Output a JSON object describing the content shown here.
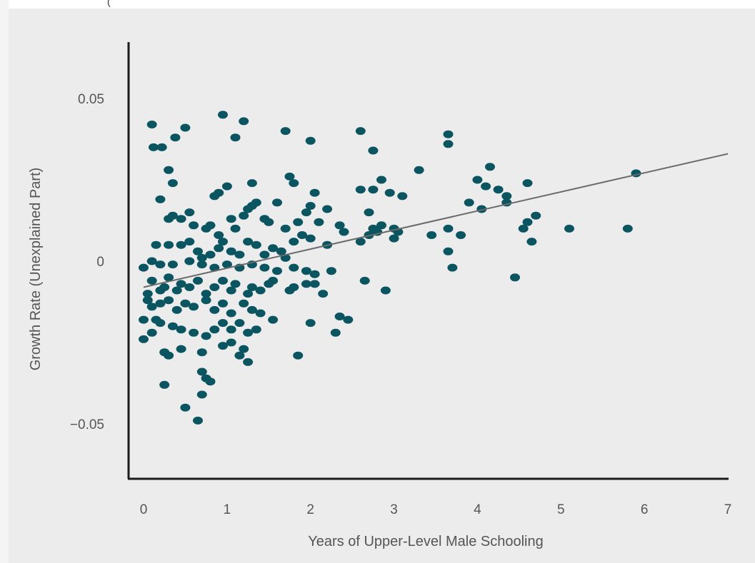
{
  "page": {
    "top_fragment": "("
  },
  "colors": {
    "background": "#ececed",
    "point": "#0b5561",
    "trendline": "#6a6a6a",
    "axis": "#1b1b1b",
    "text": "#555555"
  },
  "chart_data": {
    "type": "scatter",
    "title": "",
    "xlabel": "Years of Upper-Level Male Schooling",
    "ylabel": "Growth Rate (Unexplained Part)",
    "xlim": [
      0,
      7
    ],
    "ylim": [
      -0.068,
      0.07
    ],
    "x_ticks": [
      {
        "value": 0,
        "label": "0"
      },
      {
        "value": 1,
        "label": "1"
      },
      {
        "value": 2,
        "label": "2"
      },
      {
        "value": 3,
        "label": "3"
      },
      {
        "value": 4,
        "label": "4"
      },
      {
        "value": 5,
        "label": "5"
      },
      {
        "value": 6,
        "label": "6"
      },
      {
        "value": 7,
        "label": "7"
      }
    ],
    "y_ticks": [
      {
        "value": 0.05,
        "label": "0.05"
      },
      {
        "value": 0,
        "label": "0"
      },
      {
        "value": -0.05,
        "label": "−0.05"
      }
    ],
    "grid": false,
    "legend": "none",
    "trendline": {
      "x": [
        0,
        7
      ],
      "y": [
        -0.008,
        0.033
      ]
    },
    "points": [
      [
        0.1,
        0.042
      ],
      [
        0.12,
        0.035
      ],
      [
        0.22,
        0.035
      ],
      [
        0.38,
        0.038
      ],
      [
        0.5,
        0.041
      ],
      [
        0.95,
        0.045
      ],
      [
        1.1,
        0.038
      ],
      [
        1.2,
        0.043
      ],
      [
        1.7,
        0.04
      ],
      [
        2.0,
        0.037
      ],
      [
        2.6,
        0.04
      ],
      [
        2.75,
        0.034
      ],
      [
        3.65,
        0.039
      ],
      [
        3.65,
        0.036
      ],
      [
        0.3,
        0.028
      ],
      [
        0.35,
        0.024
      ],
      [
        0.2,
        0.019
      ],
      [
        0.9,
        0.021
      ],
      [
        0.85,
        0.02
      ],
      [
        1.0,
        0.023
      ],
      [
        1.3,
        0.024
      ],
      [
        1.75,
        0.026
      ],
      [
        1.8,
        0.024
      ],
      [
        2.05,
        0.021
      ],
      [
        2.6,
        0.022
      ],
      [
        2.75,
        0.022
      ],
      [
        2.85,
        0.025
      ],
      [
        2.95,
        0.021
      ],
      [
        3.1,
        0.02
      ],
      [
        3.3,
        0.028
      ],
      [
        3.9,
        0.018
      ],
      [
        4.0,
        0.025
      ],
      [
        4.15,
        0.029
      ],
      [
        4.1,
        0.023
      ],
      [
        4.25,
        0.022
      ],
      [
        4.35,
        0.02
      ],
      [
        4.35,
        0.018
      ],
      [
        4.6,
        0.024
      ],
      [
        4.05,
        0.016
      ],
      [
        5.9,
        0.027
      ],
      [
        0.3,
        0.013
      ],
      [
        0.35,
        0.014
      ],
      [
        0.45,
        0.013
      ],
      [
        0.55,
        0.015
      ],
      [
        0.6,
        0.011
      ],
      [
        0.75,
        0.01
      ],
      [
        0.8,
        0.011
      ],
      [
        0.9,
        0.008
      ],
      [
        1.05,
        0.013
      ],
      [
        1.1,
        0.01
      ],
      [
        1.2,
        0.014
      ],
      [
        1.25,
        0.016
      ],
      [
        1.3,
        0.017
      ],
      [
        1.35,
        0.018
      ],
      [
        1.45,
        0.013
      ],
      [
        1.5,
        0.012
      ],
      [
        1.6,
        0.018
      ],
      [
        1.7,
        0.01
      ],
      [
        1.85,
        0.012
      ],
      [
        1.95,
        0.015
      ],
      [
        2.0,
        0.017
      ],
      [
        2.1,
        0.012
      ],
      [
        2.2,
        0.016
      ],
      [
        2.35,
        0.011
      ],
      [
        2.4,
        0.009
      ],
      [
        2.7,
        0.015
      ],
      [
        2.75,
        0.01
      ],
      [
        2.8,
        0.009
      ],
      [
        2.85,
        0.011
      ],
      [
        3.0,
        0.01
      ],
      [
        3.45,
        0.008
      ],
      [
        3.65,
        0.01
      ],
      [
        3.8,
        0.008
      ],
      [
        4.6,
        0.012
      ],
      [
        4.7,
        0.014
      ],
      [
        4.55,
        0.01
      ],
      [
        5.1,
        0.01
      ],
      [
        5.8,
        0.01
      ],
      [
        0.15,
        0.005
      ],
      [
        0.3,
        0.005
      ],
      [
        0.45,
        0.005
      ],
      [
        0.55,
        0.006
      ],
      [
        0.65,
        0.003
      ],
      [
        0.7,
        0.001
      ],
      [
        0.8,
        0.002
      ],
      [
        0.9,
        0.004
      ],
      [
        0.95,
        0.006
      ],
      [
        1.05,
        0.003
      ],
      [
        1.15,
        0.002
      ],
      [
        1.25,
        0.006
      ],
      [
        1.35,
        0.005
      ],
      [
        1.45,
        0.002
      ],
      [
        1.55,
        0.004
      ],
      [
        1.65,
        0.003
      ],
      [
        1.7,
        0.001
      ],
      [
        1.8,
        0.006
      ],
      [
        1.9,
        0.008
      ],
      [
        2.0,
        0.007
      ],
      [
        2.2,
        0.005
      ],
      [
        2.6,
        0.006
      ],
      [
        2.7,
        0.008
      ],
      [
        3.0,
        0.007
      ],
      [
        3.05,
        0.009
      ],
      [
        3.65,
        0.003
      ],
      [
        4.65,
        0.006
      ],
      [
        0.1,
        0.0
      ],
      [
        0.2,
        -0.001
      ],
      [
        0.35,
        -0.001
      ],
      [
        0.55,
        0.0
      ],
      [
        0.7,
        -0.001
      ],
      [
        0.85,
        -0.002
      ],
      [
        1.0,
        -0.001
      ],
      [
        1.15,
        -0.002
      ],
      [
        1.3,
        -0.001
      ],
      [
        1.45,
        -0.002
      ],
      [
        1.6,
        -0.003
      ],
      [
        1.8,
        -0.002
      ],
      [
        1.95,
        -0.003
      ],
      [
        2.05,
        -0.004
      ],
      [
        2.25,
        -0.003
      ],
      [
        3.7,
        -0.002
      ],
      [
        0.0,
        -0.002
      ],
      [
        0.05,
        -0.01
      ],
      [
        0.1,
        -0.006
      ],
      [
        0.2,
        -0.009
      ],
      [
        0.25,
        -0.008
      ],
      [
        0.3,
        -0.005
      ],
      [
        0.4,
        -0.009
      ],
      [
        0.45,
        -0.007
      ],
      [
        0.55,
        -0.008
      ],
      [
        0.65,
        -0.006
      ],
      [
        0.75,
        -0.01
      ],
      [
        0.85,
        -0.008
      ],
      [
        0.95,
        -0.006
      ],
      [
        1.05,
        -0.009
      ],
      [
        1.1,
        -0.007
      ],
      [
        1.25,
        -0.01
      ],
      [
        1.3,
        -0.008
      ],
      [
        1.4,
        -0.009
      ],
      [
        1.5,
        -0.007
      ],
      [
        1.55,
        -0.006
      ],
      [
        1.75,
        -0.009
      ],
      [
        1.8,
        -0.008
      ],
      [
        1.95,
        -0.007
      ],
      [
        2.05,
        -0.007
      ],
      [
        2.15,
        -0.01
      ],
      [
        2.65,
        -0.006
      ],
      [
        2.9,
        -0.009
      ],
      [
        4.45,
        -0.005
      ],
      [
        0.05,
        -0.012
      ],
      [
        0.1,
        -0.014
      ],
      [
        0.2,
        -0.013
      ],
      [
        0.3,
        -0.012
      ],
      [
        0.4,
        -0.015
      ],
      [
        0.5,
        -0.013
      ],
      [
        0.6,
        -0.014
      ],
      [
        0.75,
        -0.012
      ],
      [
        0.85,
        -0.015
      ],
      [
        0.95,
        -0.013
      ],
      [
        1.05,
        -0.016
      ],
      [
        1.2,
        -0.013
      ],
      [
        1.3,
        -0.015
      ],
      [
        1.4,
        -0.016
      ],
      [
        1.55,
        -0.018
      ],
      [
        2.0,
        -0.019
      ],
      [
        2.35,
        -0.017
      ],
      [
        2.45,
        -0.018
      ],
      [
        0.0,
        -0.018
      ],
      [
        0.15,
        -0.018
      ],
      [
        0.2,
        -0.019
      ],
      [
        0.35,
        -0.02
      ],
      [
        0.45,
        -0.021
      ],
      [
        0.6,
        -0.022
      ],
      [
        0.75,
        -0.023
      ],
      [
        0.85,
        -0.021
      ],
      [
        0.95,
        -0.019
      ],
      [
        1.05,
        -0.021
      ],
      [
        1.15,
        -0.019
      ],
      [
        1.25,
        -0.022
      ],
      [
        1.35,
        -0.021
      ],
      [
        2.3,
        -0.022
      ],
      [
        0.0,
        -0.024
      ],
      [
        0.1,
        -0.022
      ],
      [
        0.25,
        -0.028
      ],
      [
        0.3,
        -0.029
      ],
      [
        0.45,
        -0.027
      ],
      [
        0.7,
        -0.028
      ],
      [
        0.95,
        -0.026
      ],
      [
        1.05,
        -0.025
      ],
      [
        1.2,
        -0.027
      ],
      [
        1.25,
        -0.031
      ],
      [
        1.15,
        -0.029
      ],
      [
        1.85,
        -0.029
      ],
      [
        0.25,
        -0.038
      ],
      [
        0.7,
        -0.034
      ],
      [
        0.75,
        -0.036
      ],
      [
        0.8,
        -0.037
      ],
      [
        0.7,
        -0.041
      ],
      [
        0.5,
        -0.045
      ],
      [
        0.65,
        -0.049
      ]
    ]
  }
}
